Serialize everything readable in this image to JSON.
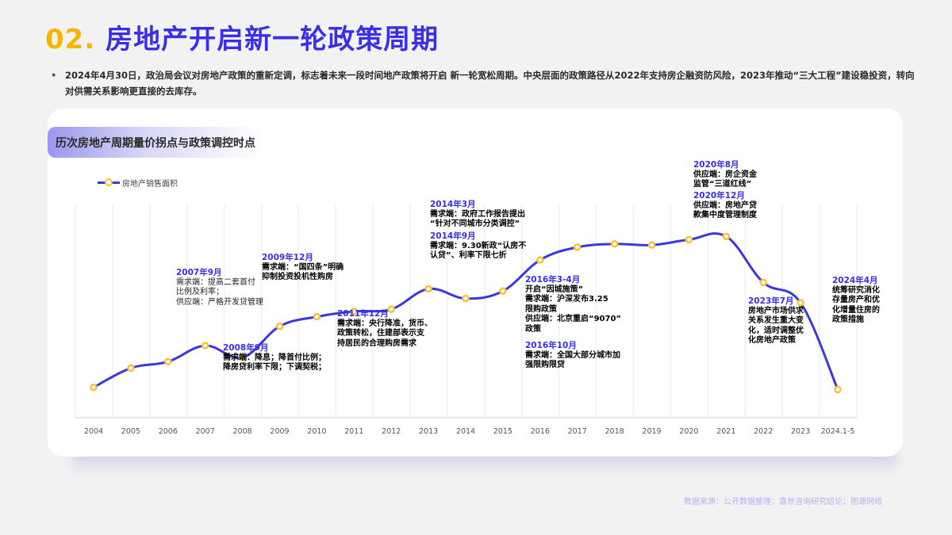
{
  "header": {
    "number": "02.",
    "title": "房地产开启新一轮政策周期"
  },
  "bullet_text": "2024年4月30日，政治局会议对房地产政策的重新定调，标志着未来一段时间地产政策将开启  新一轮宽松周期。中央层面的政策路径从2022年支持房企融资防风险，2023年推动“三大工程”建设稳投资，转向对供需关系影响更直接的去库存。",
  "card": {
    "title": "历次房地产周期量价拐点与政策调控时点"
  },
  "chart_data": {
    "type": "line",
    "title": "历次房地产周期量价拐点与政策调控时点",
    "xlabel": "",
    "ylabel": "",
    "grid": "vertical",
    "legend_position": "top-left",
    "categories": [
      "2004",
      "2005",
      "2006",
      "2007",
      "2008",
      "2009",
      "2010",
      "2011",
      "2012",
      "2013",
      "2014",
      "2015",
      "2016",
      "2017",
      "2018",
      "2019",
      "2020",
      "2021",
      "2022",
      "2023",
      "2024.1-5"
    ],
    "series": [
      {
        "name": "房地产销售面积",
        "color": "#3c36e0",
        "marker_color": "#f5c33b",
        "values": [
          3.8,
          5.6,
          6.2,
          7.7,
          6.6,
          9.5,
          10.4,
          10.9,
          11.1,
          13.0,
          12.1,
          12.8,
          15.7,
          16.9,
          17.2,
          17.1,
          17.6,
          17.9,
          13.6,
          11.7,
          3.6
        ]
      }
    ],
    "annotations": [
      {
        "date": "2007年9月",
        "lines": [
          "需求端：提高二套首付",
          "比例及利率；",
          "供应端：严格开发贷管理"
        ]
      },
      {
        "date": "2008年9月",
        "lines": [
          "需求端：降息；降首付比例；",
          "降房贷利率下限；下调契税；"
        ]
      },
      {
        "date": "2009年12月",
        "lines": [
          "需求端：“国四条”明确",
          "抑制投资投机性购房"
        ]
      },
      {
        "date": "2011年12月",
        "lines": [
          "需求端：央行降准，货币、",
          "政策转松，住建部表示支",
          "持居民的合理购房需求"
        ]
      },
      {
        "date": "2014年3月",
        "lines": [
          "需求端：政府工作报告提出",
          "“针对不同城市分类调控”"
        ]
      },
      {
        "date": "2014年9月",
        "lines": [
          "需求端：9.30新政“认房不",
          "认贷”、利率下限七折"
        ]
      },
      {
        "date": "2016年3-4月",
        "lines": [
          "开启“因城施策”",
          "需求端：沪深发布3.25",
          "限购政策",
          "供应端：北京重启“9070”",
          "政策"
        ]
      },
      {
        "date": "2016年10月",
        "lines": [
          "需求端：全国大部分城市加",
          "强限购限贷"
        ]
      },
      {
        "date": "2020年8月",
        "lines": [
          "供应端：房企资金",
          "监管“三道红线”"
        ]
      },
      {
        "date": "2020年12月",
        "lines": [
          "供应端：房地产贷",
          "款集中度管理制度"
        ]
      },
      {
        "date": "2023年7月",
        "lines": [
          "房地产市场供求",
          "关系发生重大变",
          "化，适时调整优",
          "化房地产政策"
        ]
      },
      {
        "date": "2024年4月",
        "lines": [
          "统筹研究消化",
          "存量房产和优",
          "化增量住房的",
          "政策措施"
        ]
      }
    ]
  },
  "source": "数据来源：公开数据整理；嘉世咨询研究结论；图源网络"
}
